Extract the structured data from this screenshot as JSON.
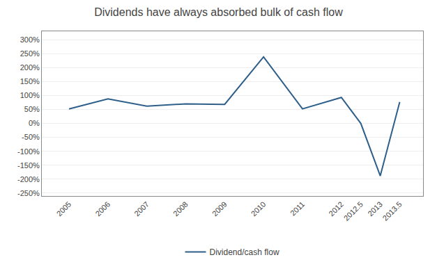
{
  "chart_data": {
    "type": "line",
    "title": "Dividends have always absorbed bulk of cash flow",
    "x": [
      2005,
      2006,
      2007,
      2008,
      2009,
      2010,
      2011,
      2012,
      2012.5,
      2013,
      2013.5
    ],
    "series": [
      {
        "name": "Dividend/cash flow",
        "color": "#2e5f8a",
        "values": [
          0.52,
          0.88,
          0.62,
          0.7,
          0.68,
          2.38,
          0.52,
          0.93,
          0.0,
          -1.88,
          0.77
        ]
      }
    ],
    "xlim": [
      2004.3,
      2014.1
    ],
    "xticks": [
      2005,
      2006,
      2007,
      2008,
      2009,
      2010,
      2011,
      2012,
      2012.5,
      2013,
      2013.5
    ],
    "ylim": [
      -2.6,
      3.3
    ],
    "yticks": [
      {
        "value": -2.5,
        "label": "-250%"
      },
      {
        "value": -2.0,
        "label": "-200%"
      },
      {
        "value": -1.5,
        "label": "-150%"
      },
      {
        "value": -1.0,
        "label": "-100%"
      },
      {
        "value": -0.5,
        "label": "-50%"
      },
      {
        "value": 0.0,
        "label": "0%"
      },
      {
        "value": 0.5,
        "label": "50%"
      },
      {
        "value": 1.0,
        "label": "100%"
      },
      {
        "value": 1.5,
        "label": "150%"
      },
      {
        "value": 2.0,
        "label": "200%"
      },
      {
        "value": 2.5,
        "label": "250%"
      },
      {
        "value": 3.0,
        "label": "300%"
      }
    ],
    "grid": "y",
    "legend": "bottom"
  }
}
